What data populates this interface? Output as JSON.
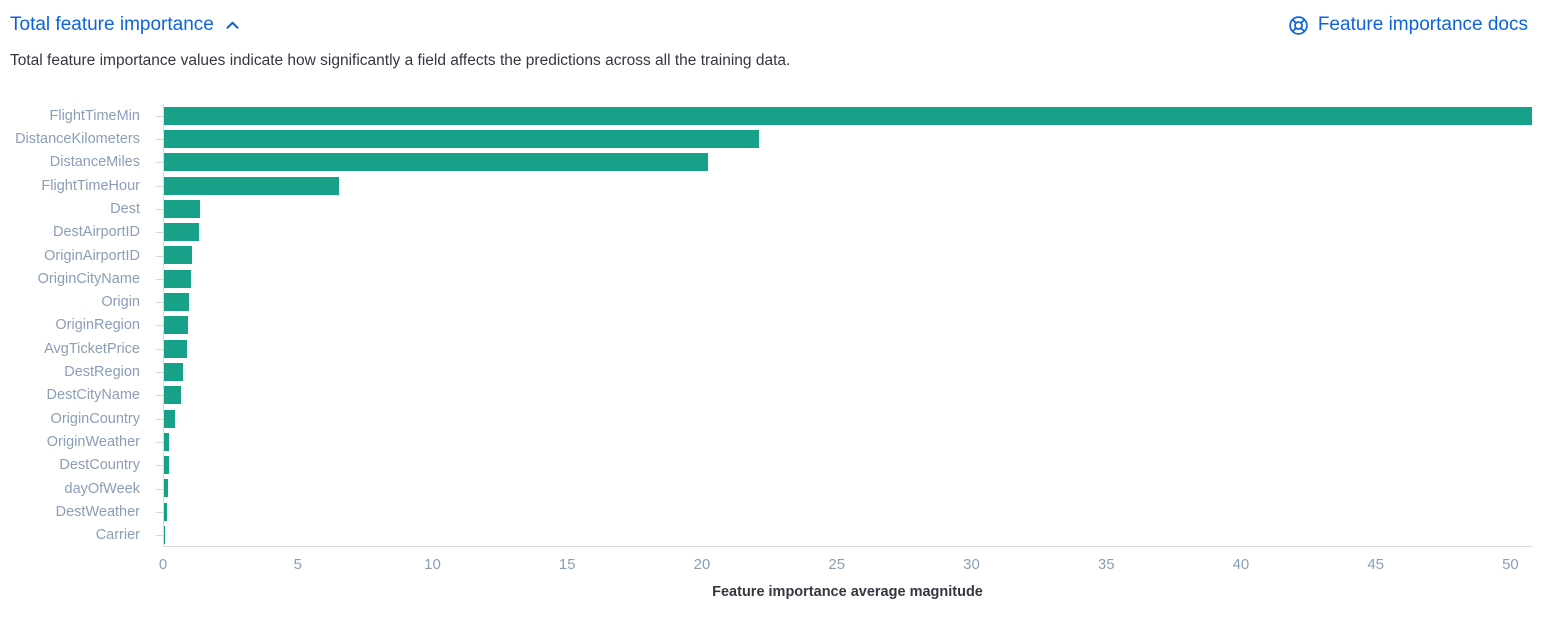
{
  "header": {
    "title": "Total feature importance",
    "collapse_icon": "chevron-up-icon",
    "docs_link": "Feature importance docs",
    "docs_icon": "help-icon"
  },
  "description": "Total feature importance values indicate how significantly a field affects the predictions across all the training data.",
  "colors": {
    "bar": "#17A188",
    "link": "#0B64DD",
    "axis_text": "#8B9DB8",
    "axis_line": "#D3DAE6",
    "body_text": "#343741"
  },
  "chart_data": {
    "type": "bar",
    "orientation": "horizontal",
    "title": "Total feature importance",
    "xlabel": "Feature importance average magnitude",
    "ylabel": "",
    "xlim": [
      0,
      50.8
    ],
    "x_ticks": [
      0,
      5,
      10,
      15,
      20,
      25,
      30,
      35,
      40,
      45,
      50
    ],
    "grid": false,
    "legend": "none",
    "categories": [
      "FlightTimeMin",
      "DistanceKilometers",
      "DistanceMiles",
      "FlightTimeHour",
      "Dest",
      "DestAirportID",
      "OriginAirportID",
      "OriginCityName",
      "Origin",
      "OriginRegion",
      "AvgTicketPrice",
      "DestRegion",
      "DestCityName",
      "OriginCountry",
      "OriginWeather",
      "DestCountry",
      "dayOfWeek",
      "DestWeather",
      "Carrier"
    ],
    "values": [
      50.8,
      22.1,
      20.2,
      6.5,
      1.35,
      1.3,
      1.05,
      1.0,
      0.92,
      0.9,
      0.85,
      0.7,
      0.62,
      0.42,
      0.2,
      0.18,
      0.15,
      0.12,
      0.03
    ]
  }
}
